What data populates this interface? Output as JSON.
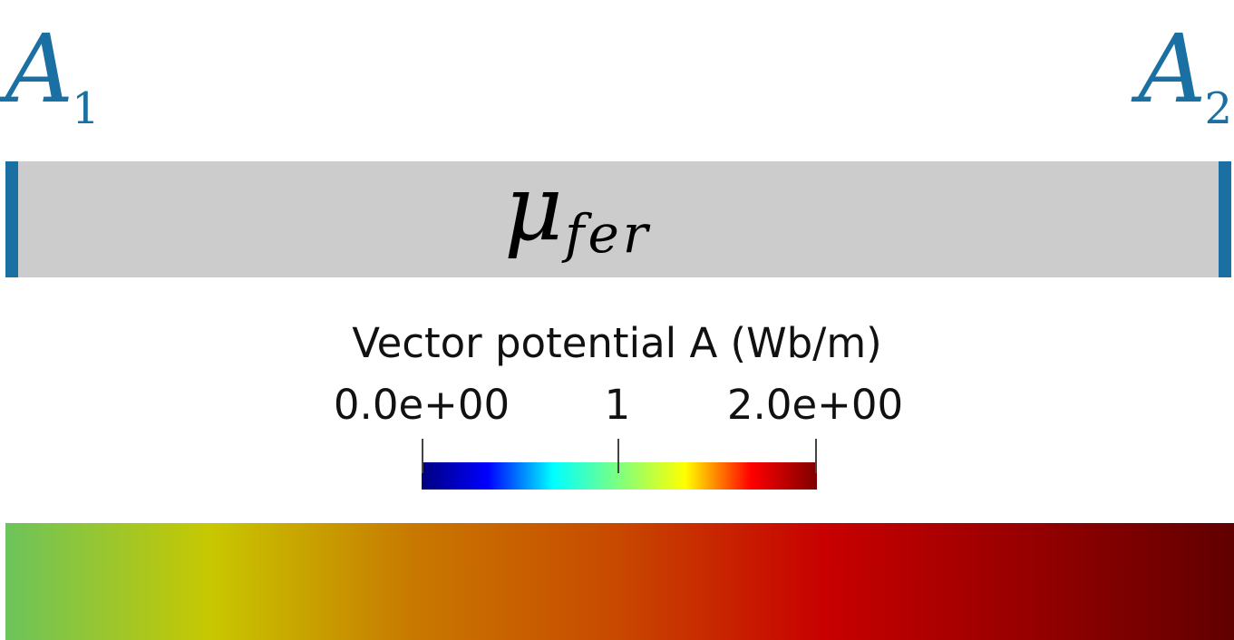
{
  "labels": {
    "a1": {
      "symbol": "A",
      "subscript": "1"
    },
    "a2": {
      "symbol": "A",
      "subscript": "2"
    },
    "material": {
      "symbol": "μ",
      "subscript": "fer"
    }
  },
  "legend": {
    "title": "Vector potential A (Wb/m)",
    "ticks": [
      "0.0e+00",
      "1",
      "2.0e+00"
    ],
    "range": [
      0,
      2
    ],
    "colormap": [
      "#00007f",
      "#0000ff",
      "#00ffff",
      "#7fff7f",
      "#ffff00",
      "#ff0000",
      "#7f0000"
    ]
  },
  "field_strip": {
    "value_range": [
      1,
      2
    ],
    "colors": [
      "#6cc45c",
      "#c8c800",
      "#c87800",
      "#c84800",
      "#c80000",
      "#960000",
      "#600000"
    ]
  },
  "colors": {
    "boundary": "#1a6fa3",
    "bar": "#cccccc"
  }
}
